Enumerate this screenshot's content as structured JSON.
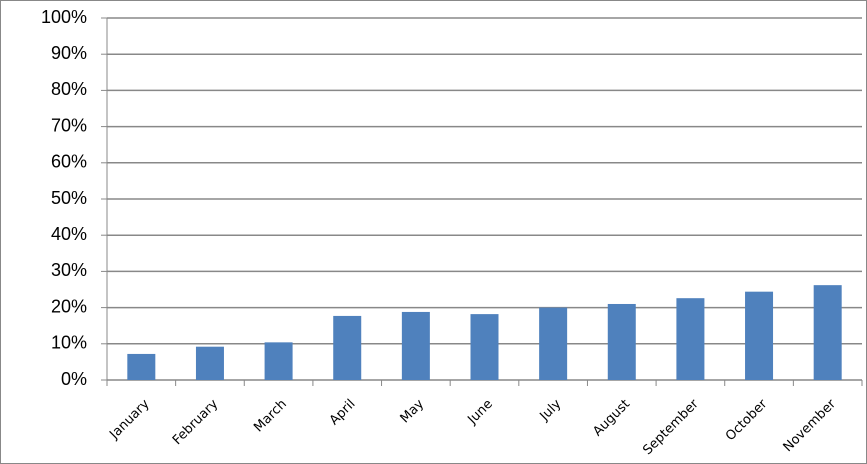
{
  "chart_data": {
    "type": "bar",
    "categories": [
      "January",
      "February",
      "March",
      "April",
      "May",
      "June",
      "July",
      "August",
      "September",
      "October",
      "November"
    ],
    "values": [
      7.2,
      9.2,
      10.4,
      17.7,
      18.8,
      18.2,
      20,
      21,
      22.6,
      24.4,
      26.2
    ],
    "color": "#4f81bd",
    "ylim": [
      0,
      100
    ],
    "yticks": [
      {
        "value": 0,
        "label": "0%"
      },
      {
        "value": 10,
        "label": "10%"
      },
      {
        "value": 20,
        "label": "20%"
      },
      {
        "value": 30,
        "label": "30%"
      },
      {
        "value": 40,
        "label": "40%"
      },
      {
        "value": 50,
        "label": "50%"
      },
      {
        "value": 60,
        "label": "60%"
      },
      {
        "value": 70,
        "label": "70%"
      },
      {
        "value": 80,
        "label": "80%"
      },
      {
        "value": 90,
        "label": "90%"
      },
      {
        "value": 100,
        "label": "100%"
      }
    ],
    "grid": true
  }
}
